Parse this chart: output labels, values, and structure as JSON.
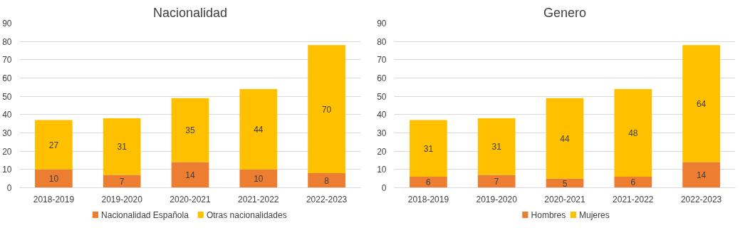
{
  "chart_data": [
    {
      "type": "bar",
      "title": "Nacionalidad",
      "stacked": true,
      "data_labels": true,
      "grid": "y",
      "legend": "bottom",
      "categories": [
        "2018-2019",
        "2019-2020",
        "2020-2021",
        "2021-2022",
        "2022-2023"
      ],
      "ylim": [
        0,
        90
      ],
      "yticks": [
        0,
        10,
        20,
        30,
        40,
        50,
        60,
        70,
        80,
        90
      ],
      "series": [
        {
          "name": "Nacionalidad Española",
          "color": "#ed7d31",
          "values": [
            10,
            7,
            14,
            10,
            8
          ]
        },
        {
          "name": "Otras nacionalidades",
          "color": "#ffc000",
          "values": [
            27,
            31,
            35,
            44,
            70
          ]
        }
      ]
    },
    {
      "type": "bar",
      "title": "Genero",
      "stacked": true,
      "data_labels": true,
      "grid": "y",
      "legend": "bottom",
      "categories": [
        "2018-2019",
        "2019-2020",
        "2020-2021",
        "2021-2022",
        "2022-2023"
      ],
      "ylim": [
        0,
        90
      ],
      "yticks": [
        0,
        10,
        20,
        30,
        40,
        50,
        60,
        70,
        80,
        90
      ],
      "series": [
        {
          "name": "Hombres",
          "color": "#ed7d31",
          "values": [
            6,
            7,
            5,
            6,
            14
          ]
        },
        {
          "name": "Mujeres",
          "color": "#ffc000",
          "values": [
            31,
            31,
            44,
            48,
            64
          ]
        }
      ]
    }
  ]
}
